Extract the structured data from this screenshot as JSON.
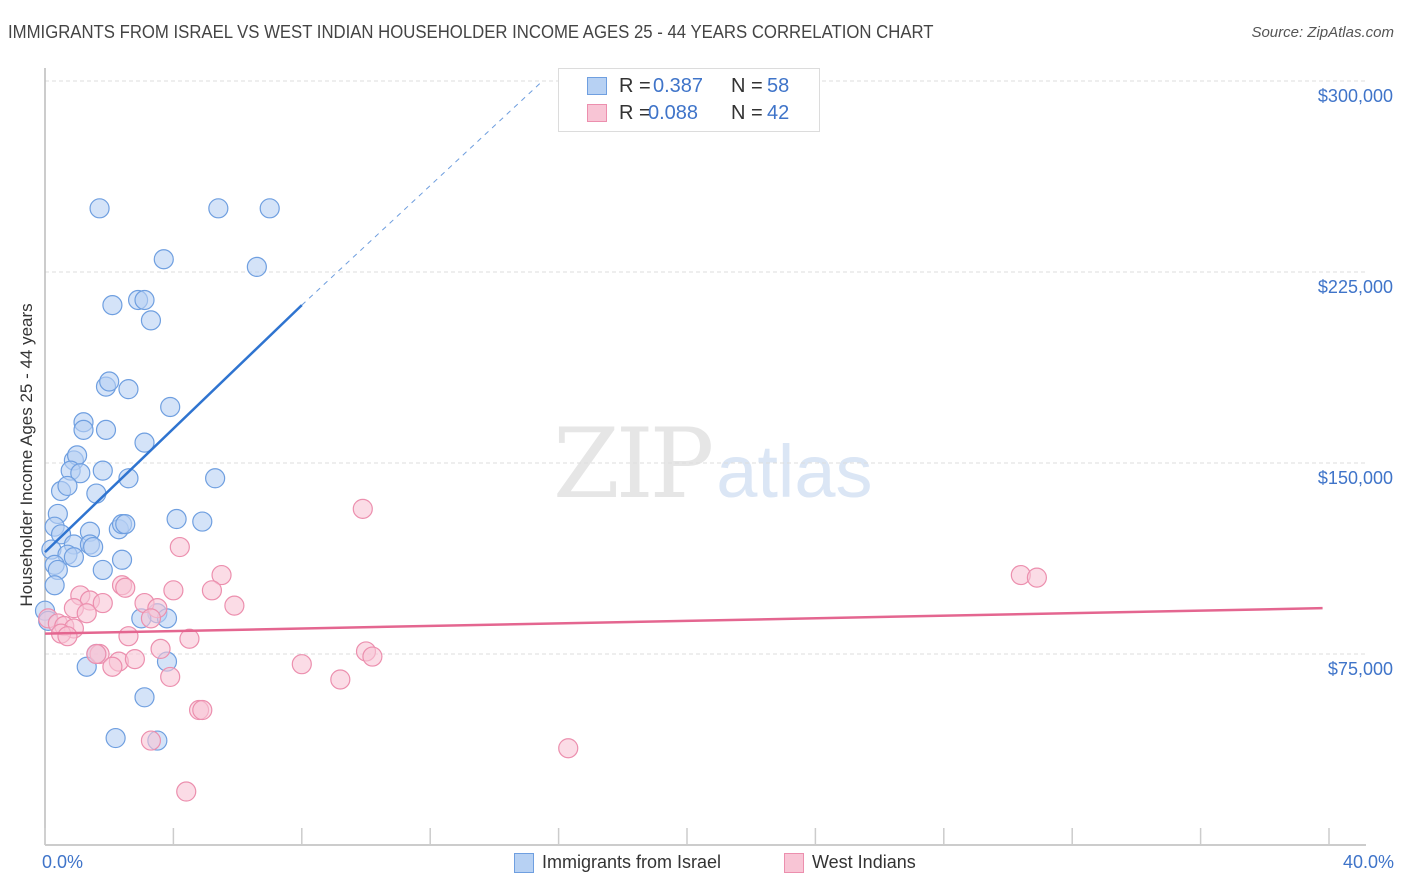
{
  "header": {
    "title": "IMMIGRANTS FROM ISRAEL VS WEST INDIAN HOUSEHOLDER INCOME AGES 25 - 44 YEARS CORRELATION CHART",
    "source": "Source: ZipAtlas.com"
  },
  "watermark": {
    "zip": "ZIP",
    "atlas": "atlas"
  },
  "colors": {
    "blue_fill": "#b7d1f3",
    "blue_stroke": "#6f9fe0",
    "blue_line": "#2f74d0",
    "pink_fill": "#f8c5d5",
    "pink_stroke": "#ec8fae",
    "pink_line": "#e46690",
    "axis_text": "#3f74c9",
    "grid": "#dddddd"
  },
  "legend": {
    "rows": [
      {
        "r_label": "R =",
        "r_value": "0.387",
        "n_label": "N =",
        "n_value": "58"
      },
      {
        "r_label": "R =",
        "r_value": "0.088",
        "n_label": "N =",
        "n_value": "42"
      }
    ]
  },
  "bottom_legend": {
    "items": [
      {
        "label": "Immigrants from Israel"
      },
      {
        "label": "West Indians"
      }
    ]
  },
  "axes": {
    "ylabel": "Householder Income Ages 25 - 44 years",
    "yticks": [
      "$300,000",
      "$225,000",
      "$150,000",
      "$75,000"
    ],
    "xtick_left": "0.0%",
    "xtick_right": "40.0%"
  },
  "chart_data": {
    "type": "scatter",
    "title": "IMMIGRANTS FROM ISRAEL VS WEST INDIAN HOUSEHOLDER INCOME AGES 25 - 44 YEARS CORRELATION CHART",
    "xlabel": "",
    "ylabel": "Householder Income Ages 25 - 44 years",
    "xlim": [
      0,
      40
    ],
    "ylim": [
      0,
      310000
    ],
    "x_unit": "%",
    "yticks": [
      75000,
      150000,
      225000,
      300000
    ],
    "grid": true,
    "legend_position": "top-center",
    "series": [
      {
        "name": "Immigrants from Israel",
        "R": 0.387,
        "N": 58,
        "trend": {
          "x0": 0,
          "y0": 115000,
          "x1": 8.0,
          "y1": 212000,
          "dashed_extension_to": [
            15.5,
            300000
          ]
        },
        "points": [
          [
            1.7,
            250000
          ],
          [
            5.4,
            250000
          ],
          [
            7.0,
            250000
          ],
          [
            3.7,
            230000
          ],
          [
            6.6,
            227000
          ],
          [
            2.1,
            212000
          ],
          [
            2.9,
            214000
          ],
          [
            3.1,
            214000
          ],
          [
            3.3,
            206000
          ],
          [
            1.9,
            180000
          ],
          [
            2.0,
            182000
          ],
          [
            2.6,
            179000
          ],
          [
            3.9,
            172000
          ],
          [
            1.2,
            166000
          ],
          [
            1.2,
            163000
          ],
          [
            1.9,
            163000
          ],
          [
            3.1,
            158000
          ],
          [
            0.9,
            151000
          ],
          [
            1.0,
            153000
          ],
          [
            0.8,
            147000
          ],
          [
            1.1,
            146000
          ],
          [
            1.8,
            147000
          ],
          [
            2.6,
            144000
          ],
          [
            5.3,
            144000
          ],
          [
            0.5,
            139000
          ],
          [
            0.7,
            141000
          ],
          [
            1.6,
            138000
          ],
          [
            0.4,
            130000
          ],
          [
            0.3,
            125000
          ],
          [
            1.4,
            123000
          ],
          [
            2.3,
            124000
          ],
          [
            2.4,
            126000
          ],
          [
            2.5,
            126000
          ],
          [
            4.1,
            128000
          ],
          [
            4.9,
            127000
          ],
          [
            0.5,
            122000
          ],
          [
            0.9,
            118000
          ],
          [
            1.4,
            118000
          ],
          [
            1.5,
            117000
          ],
          [
            0.2,
            116000
          ],
          [
            0.7,
            114000
          ],
          [
            0.9,
            113000
          ],
          [
            2.4,
            112000
          ],
          [
            1.8,
            108000
          ],
          [
            0.3,
            110000
          ],
          [
            0.4,
            108000
          ],
          [
            0.3,
            102000
          ],
          [
            0.0,
            92000
          ],
          [
            3.5,
            91000
          ],
          [
            3.8,
            89000
          ],
          [
            3.0,
            89000
          ],
          [
            1.6,
            75000
          ],
          [
            3.8,
            72000
          ],
          [
            1.3,
            70000
          ],
          [
            3.1,
            58000
          ],
          [
            2.2,
            42000
          ],
          [
            3.5,
            41000
          ],
          [
            0.1,
            88000
          ]
        ]
      },
      {
        "name": "West Indians",
        "R": 0.088,
        "N": 42,
        "trend": {
          "x0": 0,
          "y0": 83000,
          "x1": 39.8,
          "y1": 93000
        },
        "points": [
          [
            9.9,
            132000
          ],
          [
            4.2,
            117000
          ],
          [
            5.5,
            106000
          ],
          [
            30.4,
            106000
          ],
          [
            30.9,
            105000
          ],
          [
            2.4,
            102000
          ],
          [
            2.5,
            101000
          ],
          [
            4.0,
            100000
          ],
          [
            5.2,
            100000
          ],
          [
            1.1,
            98000
          ],
          [
            1.4,
            96000
          ],
          [
            1.8,
            95000
          ],
          [
            3.1,
            95000
          ],
          [
            0.9,
            93000
          ],
          [
            3.5,
            93000
          ],
          [
            5.9,
            94000
          ],
          [
            1.3,
            91000
          ],
          [
            3.3,
            89000
          ],
          [
            0.1,
            89000
          ],
          [
            0.4,
            87000
          ],
          [
            0.6,
            86000
          ],
          [
            0.9,
            85000
          ],
          [
            0.5,
            83000
          ],
          [
            0.7,
            82000
          ],
          [
            2.6,
            82000
          ],
          [
            4.5,
            81000
          ],
          [
            3.6,
            77000
          ],
          [
            10.0,
            76000
          ],
          [
            10.2,
            74000
          ],
          [
            1.7,
            75000
          ],
          [
            2.3,
            72000
          ],
          [
            2.8,
            73000
          ],
          [
            2.1,
            70000
          ],
          [
            8.0,
            71000
          ],
          [
            3.9,
            66000
          ],
          [
            9.2,
            65000
          ],
          [
            4.8,
            53000
          ],
          [
            4.9,
            53000
          ],
          [
            3.3,
            41000
          ],
          [
            16.3,
            38000
          ],
          [
            4.4,
            21000
          ],
          [
            1.6,
            75000
          ]
        ]
      }
    ]
  }
}
